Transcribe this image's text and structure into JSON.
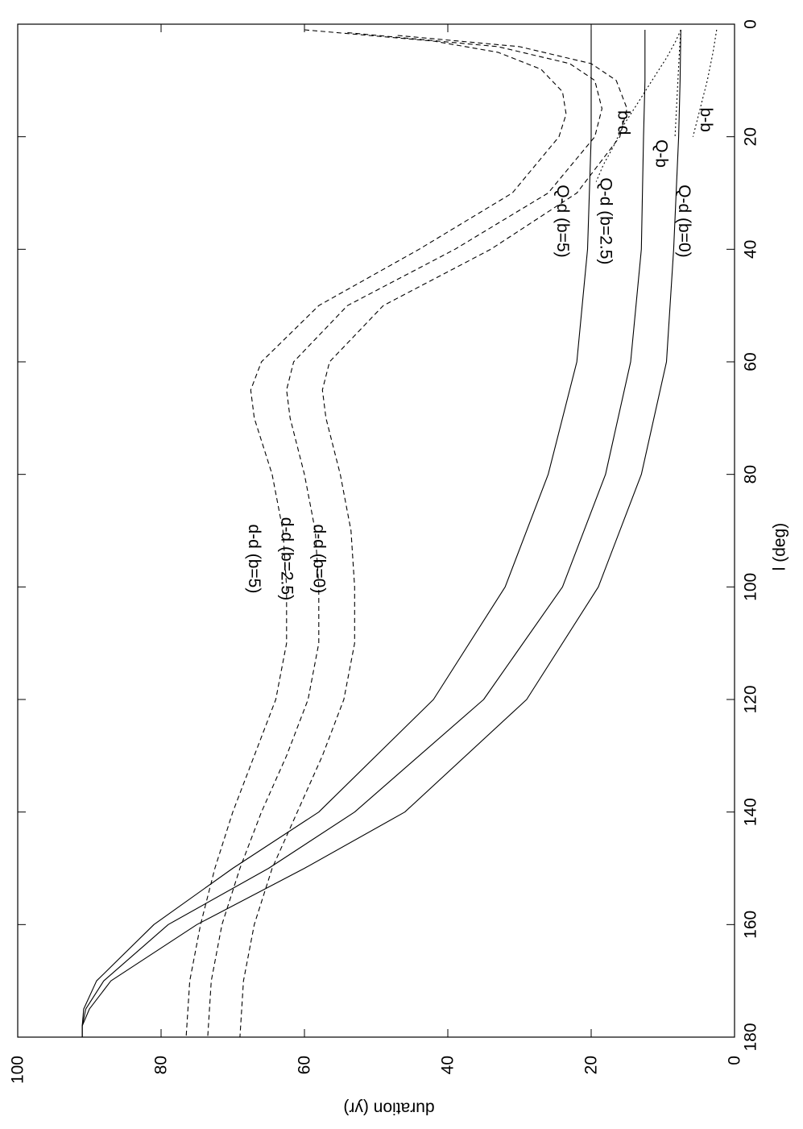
{
  "chart_data": {
    "type": "line",
    "title": "",
    "xlabel": "l (deg)",
    "ylabel": "duration (yr)",
    "xlim": [
      0,
      180
    ],
    "ylim": [
      0,
      100
    ],
    "xticks": [
      0,
      20,
      40,
      60,
      80,
      100,
      120,
      140,
      160,
      180
    ],
    "yticks": [
      0,
      20,
      40,
      60,
      80,
      100
    ],
    "orientation": "rotated-90-clockwise",
    "grid": false,
    "legend": "none",
    "series": [
      {
        "name": "Q-d (b=0)",
        "style": "solid",
        "x": [
          1,
          10,
          20,
          40,
          60,
          80,
          100,
          120,
          140,
          150,
          160,
          170,
          175,
          178,
          180
        ],
        "y": [
          7.5,
          7.6,
          7.8,
          8.5,
          9.5,
          13,
          19,
          29,
          46,
          60,
          75,
          87,
          90,
          91,
          91
        ]
      },
      {
        "name": "Q-d (b=2.5)",
        "style": "solid",
        "x": [
          1,
          10,
          20,
          40,
          60,
          80,
          100,
          120,
          140,
          150,
          160,
          170,
          175,
          178,
          180
        ],
        "y": [
          12.5,
          12.5,
          12.7,
          13,
          14.5,
          18,
          24,
          35,
          53,
          65,
          79,
          88,
          90.5,
          91,
          91
        ]
      },
      {
        "name": "Q-d (b=5)",
        "style": "solid",
        "x": [
          1,
          10,
          20,
          40,
          60,
          80,
          100,
          120,
          140,
          150,
          160,
          170,
          175,
          178,
          180
        ],
        "y": [
          20,
          20,
          20,
          20.5,
          22,
          26,
          32,
          42,
          58,
          70,
          81,
          89,
          90.8,
          91,
          91
        ]
      },
      {
        "name": "d-d (b=0)",
        "style": "dashed",
        "x": [
          2,
          4,
          7,
          10,
          15,
          20,
          30,
          40,
          50,
          60,
          65,
          70,
          80,
          90,
          100,
          110,
          120,
          130,
          140,
          150,
          160,
          170,
          180
        ],
        "y": [
          47,
          30,
          20,
          16.5,
          15,
          16,
          22,
          34,
          49,
          56.5,
          57.5,
          57,
          55,
          53.5,
          53,
          53,
          54.5,
          57.5,
          61,
          64.5,
          67,
          68.5,
          69
        ]
      },
      {
        "name": "d-d (b=2.5)",
        "style": "dashed",
        "x": [
          1.5,
          4,
          7,
          10,
          15,
          20,
          30,
          40,
          50,
          60,
          65,
          70,
          80,
          90,
          100,
          110,
          120,
          130,
          140,
          150,
          160,
          170,
          180
        ],
        "y": [
          54,
          33,
          23,
          19.5,
          18.5,
          19.5,
          26,
          39,
          54,
          61.5,
          62.5,
          62,
          60,
          58.5,
          58,
          58,
          59.5,
          62.5,
          66,
          69,
          71.5,
          73,
          73.5
        ]
      },
      {
        "name": "d-d (b=5)",
        "style": "dashed",
        "x": [
          1,
          3,
          5,
          8,
          12,
          16,
          20,
          30,
          40,
          50,
          60,
          65,
          70,
          80,
          90,
          100,
          110,
          120,
          130,
          140,
          150,
          160,
          170,
          180
        ],
        "y": [
          60,
          42,
          33,
          27,
          24,
          23.5,
          24.5,
          31,
          44,
          58,
          66,
          67.5,
          67,
          64.5,
          63,
          62.5,
          62.5,
          64,
          67,
          70,
          72.5,
          74.5,
          76,
          76.5
        ]
      },
      {
        "name": "b-d",
        "style": "dotted",
        "x": [
          1,
          3,
          6,
          10,
          14,
          18,
          22,
          25,
          28
        ],
        "y": [
          7.5,
          8.2,
          9.5,
          11.5,
          13.5,
          15.5,
          17,
          18.3,
          19.3
        ]
      },
      {
        "name": "Q-b",
        "style": "dotted",
        "x": [
          1,
          5,
          10,
          15,
          20
        ],
        "y": [
          7.5,
          7.7,
          7.9,
          8.1,
          8.3
        ]
      },
      {
        "name": "b-b",
        "style": "dotted",
        "x": [
          1,
          5,
          10,
          15,
          20
        ],
        "y": [
          2.5,
          3.0,
          3.8,
          4.8,
          5.8
        ]
      }
    ],
    "annotations": [
      {
        "text": "d-d (b=5)",
        "x": 95,
        "y": 67
      },
      {
        "text": "d-d (b=2.5)",
        "x": 95,
        "y": 62.5
      },
      {
        "text": "d-d (b=0)",
        "x": 95,
        "y": 58
      },
      {
        "text": "Q-d (b=5)",
        "x": 35,
        "y": 24
      },
      {
        "text": "Q-d (b=2.5)",
        "x": 35,
        "y": 18
      },
      {
        "text": "Q-d (b=0)",
        "x": 35,
        "y": 7
      },
      {
        "text": "b-d",
        "x": 17.5,
        "y": 15.5
      },
      {
        "text": "Q-b",
        "x": 23,
        "y": 10.2
      },
      {
        "text": "b-b",
        "x": 17,
        "y": 4
      }
    ]
  }
}
